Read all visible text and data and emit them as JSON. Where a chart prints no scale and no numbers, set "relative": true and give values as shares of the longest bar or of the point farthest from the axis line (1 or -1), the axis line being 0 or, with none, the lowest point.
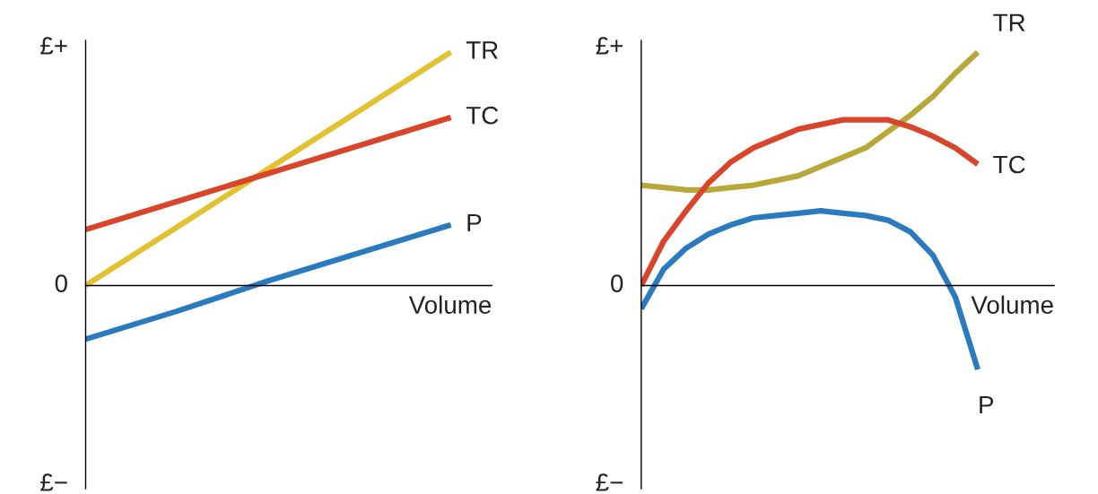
{
  "chart_data": [
    {
      "type": "line",
      "relative": true,
      "xlabel": "Volume",
      "annotations": [
        "£+",
        "0",
        "£−"
      ],
      "categories": [
        null,
        null,
        null,
        null,
        null
      ],
      "series": [
        {
          "name": "TR",
          "color": "#e3c232",
          "values": [
            0,
            0.25,
            0.5,
            0.75,
            1.0
          ]
        },
        {
          "name": "TC",
          "color": "#d8452b",
          "values": [
            0.24,
            0.36,
            0.48,
            0.6,
            0.72
          ]
        },
        {
          "name": "P",
          "color": "#2a7ac0",
          "values": [
            -0.23,
            -0.11,
            0.02,
            0.14,
            0.26
          ]
        }
      ]
    },
    {
      "type": "line",
      "relative": true,
      "xlabel": "Volume",
      "annotations": [
        "£+",
        "0",
        "£−"
      ],
      "categories": [
        null,
        null,
        null,
        null,
        null,
        null,
        null,
        null,
        null,
        null,
        null,
        null,
        null,
        null,
        null,
        null
      ],
      "series": [
        {
          "name": "TR",
          "color": "#b8a83a",
          "values": [
            0.43,
            0.42,
            0.41,
            0.41,
            0.42,
            0.43,
            0.45,
            0.47,
            0.51,
            0.55,
            0.59,
            0.66,
            0.73,
            0.81,
            0.91,
            1.0
          ]
        },
        {
          "name": "TC",
          "color": "#d8452b",
          "values": [
            0,
            0.19,
            0.32,
            0.44,
            0.53,
            0.59,
            0.63,
            0.67,
            0.69,
            0.71,
            0.71,
            0.71,
            0.68,
            0.64,
            0.59,
            0.52
          ]
        },
        {
          "name": "P",
          "color": "#2a7ac0",
          "values": [
            -0.1,
            0.07,
            0.16,
            0.22,
            0.26,
            0.29,
            0.3,
            0.31,
            0.32,
            0.31,
            0.3,
            0.28,
            0.23,
            0.13,
            -0.05,
            -0.36
          ]
        }
      ]
    }
  ]
}
